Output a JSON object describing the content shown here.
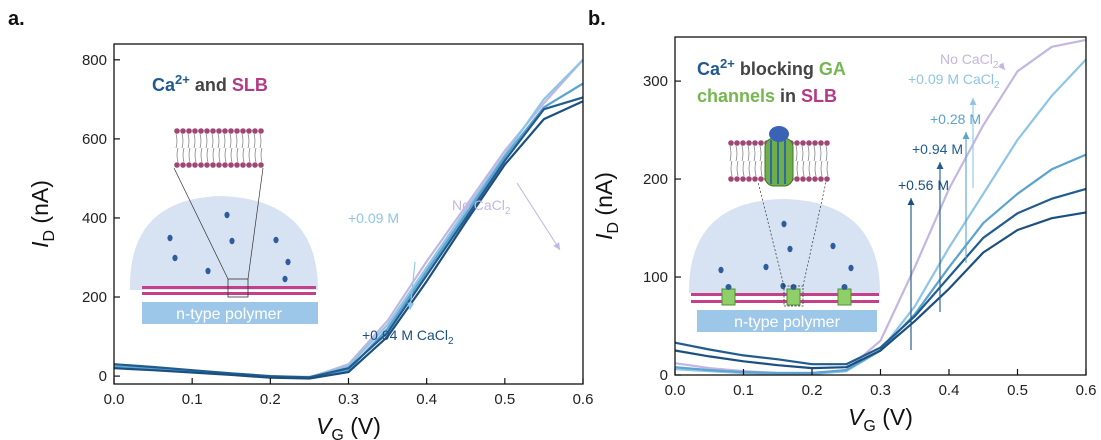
{
  "colors": {
    "ca": "#1f5a92",
    "and": "#444444",
    "slb": "#b23a86",
    "ga": "#74b74f",
    "noca": "#c3b7e2",
    "light": "#8ec5e6",
    "mid": "#5ba3d0",
    "dark": "#215c8f",
    "navy": "#1b4f80",
    "membrane": "#c4418a",
    "polymer": "#9cc7e8",
    "dome": "#d7e2f2",
    "ion": "#2f5d9c"
  },
  "polymer_label": "n-type polymer",
  "panels": [
    {
      "id": "a",
      "label": "a.",
      "title_parts": [
        {
          "text": "Ca",
          "color": "ca"
        },
        {
          "text": "2+",
          "color": "ca",
          "sup": true
        },
        {
          "text": " and ",
          "color": "and"
        },
        {
          "text": "SLB",
          "color": "slb"
        }
      ],
      "annotations": [
        {
          "text": "No CaCl",
          "sub": "2",
          "color": "noca"
        },
        {
          "text": "+0.09 M",
          "sub": "",
          "color": "light"
        },
        {
          "text": "+0.94 M CaCl",
          "sub": "2",
          "color": "navy"
        }
      ]
    },
    {
      "id": "b",
      "label": "b.",
      "title_parts": [
        {
          "text": "Ca",
          "color": "ca"
        },
        {
          "text": "2+",
          "color": "ca",
          "sup": true
        },
        {
          "text": " blocking ",
          "color": "and"
        },
        {
          "text": "GA",
          "color": "ga"
        },
        {
          "text": "channels",
          "color": "ga",
          "line2": true
        },
        {
          "text": " in ",
          "color": "and",
          "line2": true
        },
        {
          "text": "SLB",
          "color": "slb",
          "line2": true
        }
      ],
      "annotations": [
        {
          "text": "No CaCl",
          "sub": "2",
          "color": "noca"
        },
        {
          "text": "+0.09 M CaCl",
          "sub": "2",
          "color": "light"
        },
        {
          "text": "+0.28 M",
          "sub": "",
          "color": "mid"
        },
        {
          "text": "+0.94 M",
          "sub": "",
          "color": "dark"
        },
        {
          "text": "+0.56 M",
          "sub": "",
          "color": "navy"
        }
      ]
    }
  ],
  "chart_data": [
    {
      "type": "line",
      "panel": "a.",
      "xlabel": "V_G (V)",
      "ylabel": "I_D (nA)",
      "xlim": [
        0,
        0.6
      ],
      "ylim": [
        -20,
        840
      ],
      "xticks": [
        "0.0",
        "0.1",
        "0.2",
        "0.3",
        "0.4",
        "0.5",
        "0.6"
      ],
      "yticks": [
        "0",
        "200",
        "400",
        "600",
        "800"
      ],
      "x": [
        0,
        0.05,
        0.1,
        0.15,
        0.2,
        0.25,
        0.3,
        0.35,
        0.4,
        0.45,
        0.5,
        0.55,
        0.6
      ],
      "series": [
        {
          "color": "noca",
          "values": [
            25,
            19,
            12,
            5,
            -2,
            -4,
            30,
            140,
            290,
            430,
            570,
            690,
            800
          ]
        },
        {
          "color": "light",
          "values": [
            28,
            22,
            14,
            6,
            -1,
            -2,
            25,
            130,
            275,
            420,
            560,
            700,
            800
          ]
        },
        {
          "color": "mid",
          "values": [
            24,
            18,
            11,
            4,
            -3,
            -5,
            15,
            120,
            265,
            410,
            555,
            680,
            740
          ]
        },
        {
          "color": "dark",
          "values": [
            30,
            23,
            15,
            7,
            0,
            -3,
            20,
            110,
            255,
            400,
            545,
            675,
            705
          ]
        },
        {
          "color": "navy",
          "values": [
            20,
            15,
            9,
            3,
            -4,
            -6,
            10,
            100,
            240,
            390,
            535,
            650,
            695
          ]
        }
      ]
    },
    {
      "type": "line",
      "panel": "b.",
      "xlabel": "V_G (V)",
      "ylabel": "I_D (nA)",
      "xlim": [
        0,
        0.6
      ],
      "ylim": [
        0,
        345
      ],
      "xticks": [
        "0.0",
        "0.1",
        "0.2",
        "0.3",
        "0.4",
        "0.5",
        "0.6"
      ],
      "yticks": [
        "0",
        "100",
        "200",
        "300"
      ],
      "x": [
        0,
        0.05,
        0.1,
        0.15,
        0.2,
        0.25,
        0.3,
        0.35,
        0.4,
        0.45,
        0.5,
        0.55,
        0.6
      ],
      "series": [
        {
          "name": "No CaCl2",
          "color": "noca",
          "values": [
            12,
            7,
            4,
            2,
            2,
            5,
            35,
            110,
            190,
            255,
            310,
            335,
            342
          ]
        },
        {
          "name": "+0.09 M CaCl2",
          "color": "light",
          "values": [
            6,
            4,
            2,
            1,
            1,
            4,
            25,
            70,
            130,
            185,
            240,
            285,
            322
          ]
        },
        {
          "name": "+0.28 M",
          "color": "mid",
          "values": [
            8,
            5,
            3,
            2,
            2,
            5,
            25,
            62,
            110,
            155,
            185,
            210,
            225
          ]
        },
        {
          "name": "+0.94 M",
          "color": "dark",
          "values": [
            33,
            26,
            20,
            16,
            11,
            11,
            28,
            60,
            100,
            140,
            165,
            180,
            190
          ]
        },
        {
          "name": "+0.56 M",
          "color": "navy",
          "values": [
            25,
            19,
            14,
            10,
            7,
            8,
            25,
            55,
            88,
            125,
            148,
            160,
            166
          ]
        }
      ]
    }
  ]
}
